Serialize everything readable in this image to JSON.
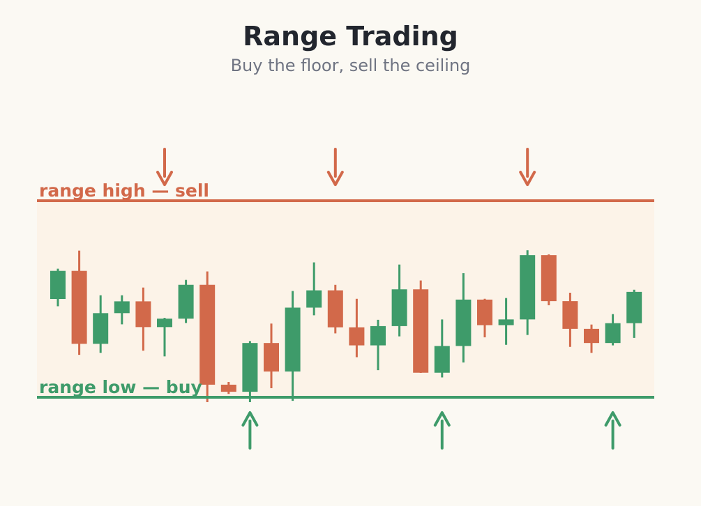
{
  "title": "Range Trading",
  "subtitle": "Buy the floor, sell the ceiling",
  "labels": {
    "range_high": "range high — sell",
    "range_low": "range low — buy"
  },
  "colors": {
    "up": "#3e9b6a",
    "down": "#d2694a",
    "zone": "#fcf3e8",
    "background": "#fbf9f3"
  },
  "chart_data": {
    "type": "candlestick",
    "range_high": 100,
    "range_low": 0,
    "candles": [
      {
        "o": 50.0,
        "c": 64.3,
        "h": 65.4,
        "l": 46.3,
        "dir": "up"
      },
      {
        "o": 64.3,
        "c": 27.2,
        "h": 74.6,
        "l": 21.6,
        "dir": "down"
      },
      {
        "o": 27.2,
        "c": 42.8,
        "h": 51.9,
        "l": 22.6,
        "dir": "up"
      },
      {
        "o": 42.8,
        "c": 48.8,
        "h": 51.9,
        "l": 37.1,
        "dir": "up"
      },
      {
        "o": 48.8,
        "c": 35.7,
        "h": 55.8,
        "l": 23.7,
        "dir": "down"
      },
      {
        "o": 35.7,
        "c": 40.0,
        "h": 40.4,
        "l": 20.8,
        "dir": "up"
      },
      {
        "o": 40.0,
        "c": 57.2,
        "h": 59.7,
        "l": 37.8,
        "dir": "up"
      },
      {
        "o": 57.2,
        "c": 6.4,
        "h": 64.0,
        "l": -2.5,
        "dir": "down"
      },
      {
        "o": 6.4,
        "c": 2.8,
        "h": 7.8,
        "l": 1.7,
        "dir": "down"
      },
      {
        "o": 2.8,
        "c": 27.6,
        "h": 28.6,
        "l": -2.5,
        "dir": "up"
      },
      {
        "o": 27.6,
        "c": 13.1,
        "h": 37.5,
        "l": 4.6,
        "dir": "down"
      },
      {
        "o": 13.1,
        "c": 45.6,
        "h": 54.1,
        "l": -1.8,
        "dir": "up"
      },
      {
        "o": 45.6,
        "c": 54.4,
        "h": 68.6,
        "l": 41.7,
        "dir": "up"
      },
      {
        "o": 54.4,
        "c": 35.6,
        "h": 57.2,
        "l": 32.5,
        "dir": "down"
      },
      {
        "o": 35.6,
        "c": 26.4,
        "h": 50.1,
        "l": 20.4,
        "dir": "down"
      },
      {
        "o": 26.4,
        "c": 36.2,
        "h": 39.4,
        "l": 13.8,
        "dir": "up"
      },
      {
        "o": 36.2,
        "c": 54.9,
        "h": 67.5,
        "l": 31.0,
        "dir": "up"
      },
      {
        "o": 54.9,
        "c": 12.5,
        "h": 59.4,
        "l": 12.4,
        "dir": "down"
      },
      {
        "o": 12.5,
        "c": 26.1,
        "h": 39.6,
        "l": 10.1,
        "dir": "up"
      },
      {
        "o": 26.1,
        "c": 49.7,
        "h": 63.1,
        "l": 17.7,
        "dir": "up"
      },
      {
        "o": 49.7,
        "c": 36.7,
        "h": 50.1,
        "l": 30.5,
        "dir": "down"
      },
      {
        "o": 36.7,
        "c": 39.6,
        "h": 50.5,
        "l": 26.7,
        "dir": "up"
      },
      {
        "o": 39.6,
        "c": 72.3,
        "h": 74.8,
        "l": 31.7,
        "dir": "up"
      },
      {
        "o": 72.3,
        "c": 48.9,
        "h": 72.7,
        "l": 46.8,
        "dir": "down"
      },
      {
        "o": 48.9,
        "c": 34.8,
        "h": 53.2,
        "l": 25.6,
        "dir": "down"
      },
      {
        "o": 34.8,
        "c": 27.6,
        "h": 37.0,
        "l": 22.6,
        "dir": "down"
      },
      {
        "o": 27.6,
        "c": 37.7,
        "h": 42.3,
        "l": 26.4,
        "dir": "up"
      },
      {
        "o": 37.7,
        "c": 53.6,
        "h": 54.7,
        "l": 30.2,
        "dir": "up"
      }
    ],
    "sell_signals_at_candle": [
      5,
      13,
      22
    ],
    "buy_signals_at_candle": [
      9,
      18,
      26
    ]
  }
}
